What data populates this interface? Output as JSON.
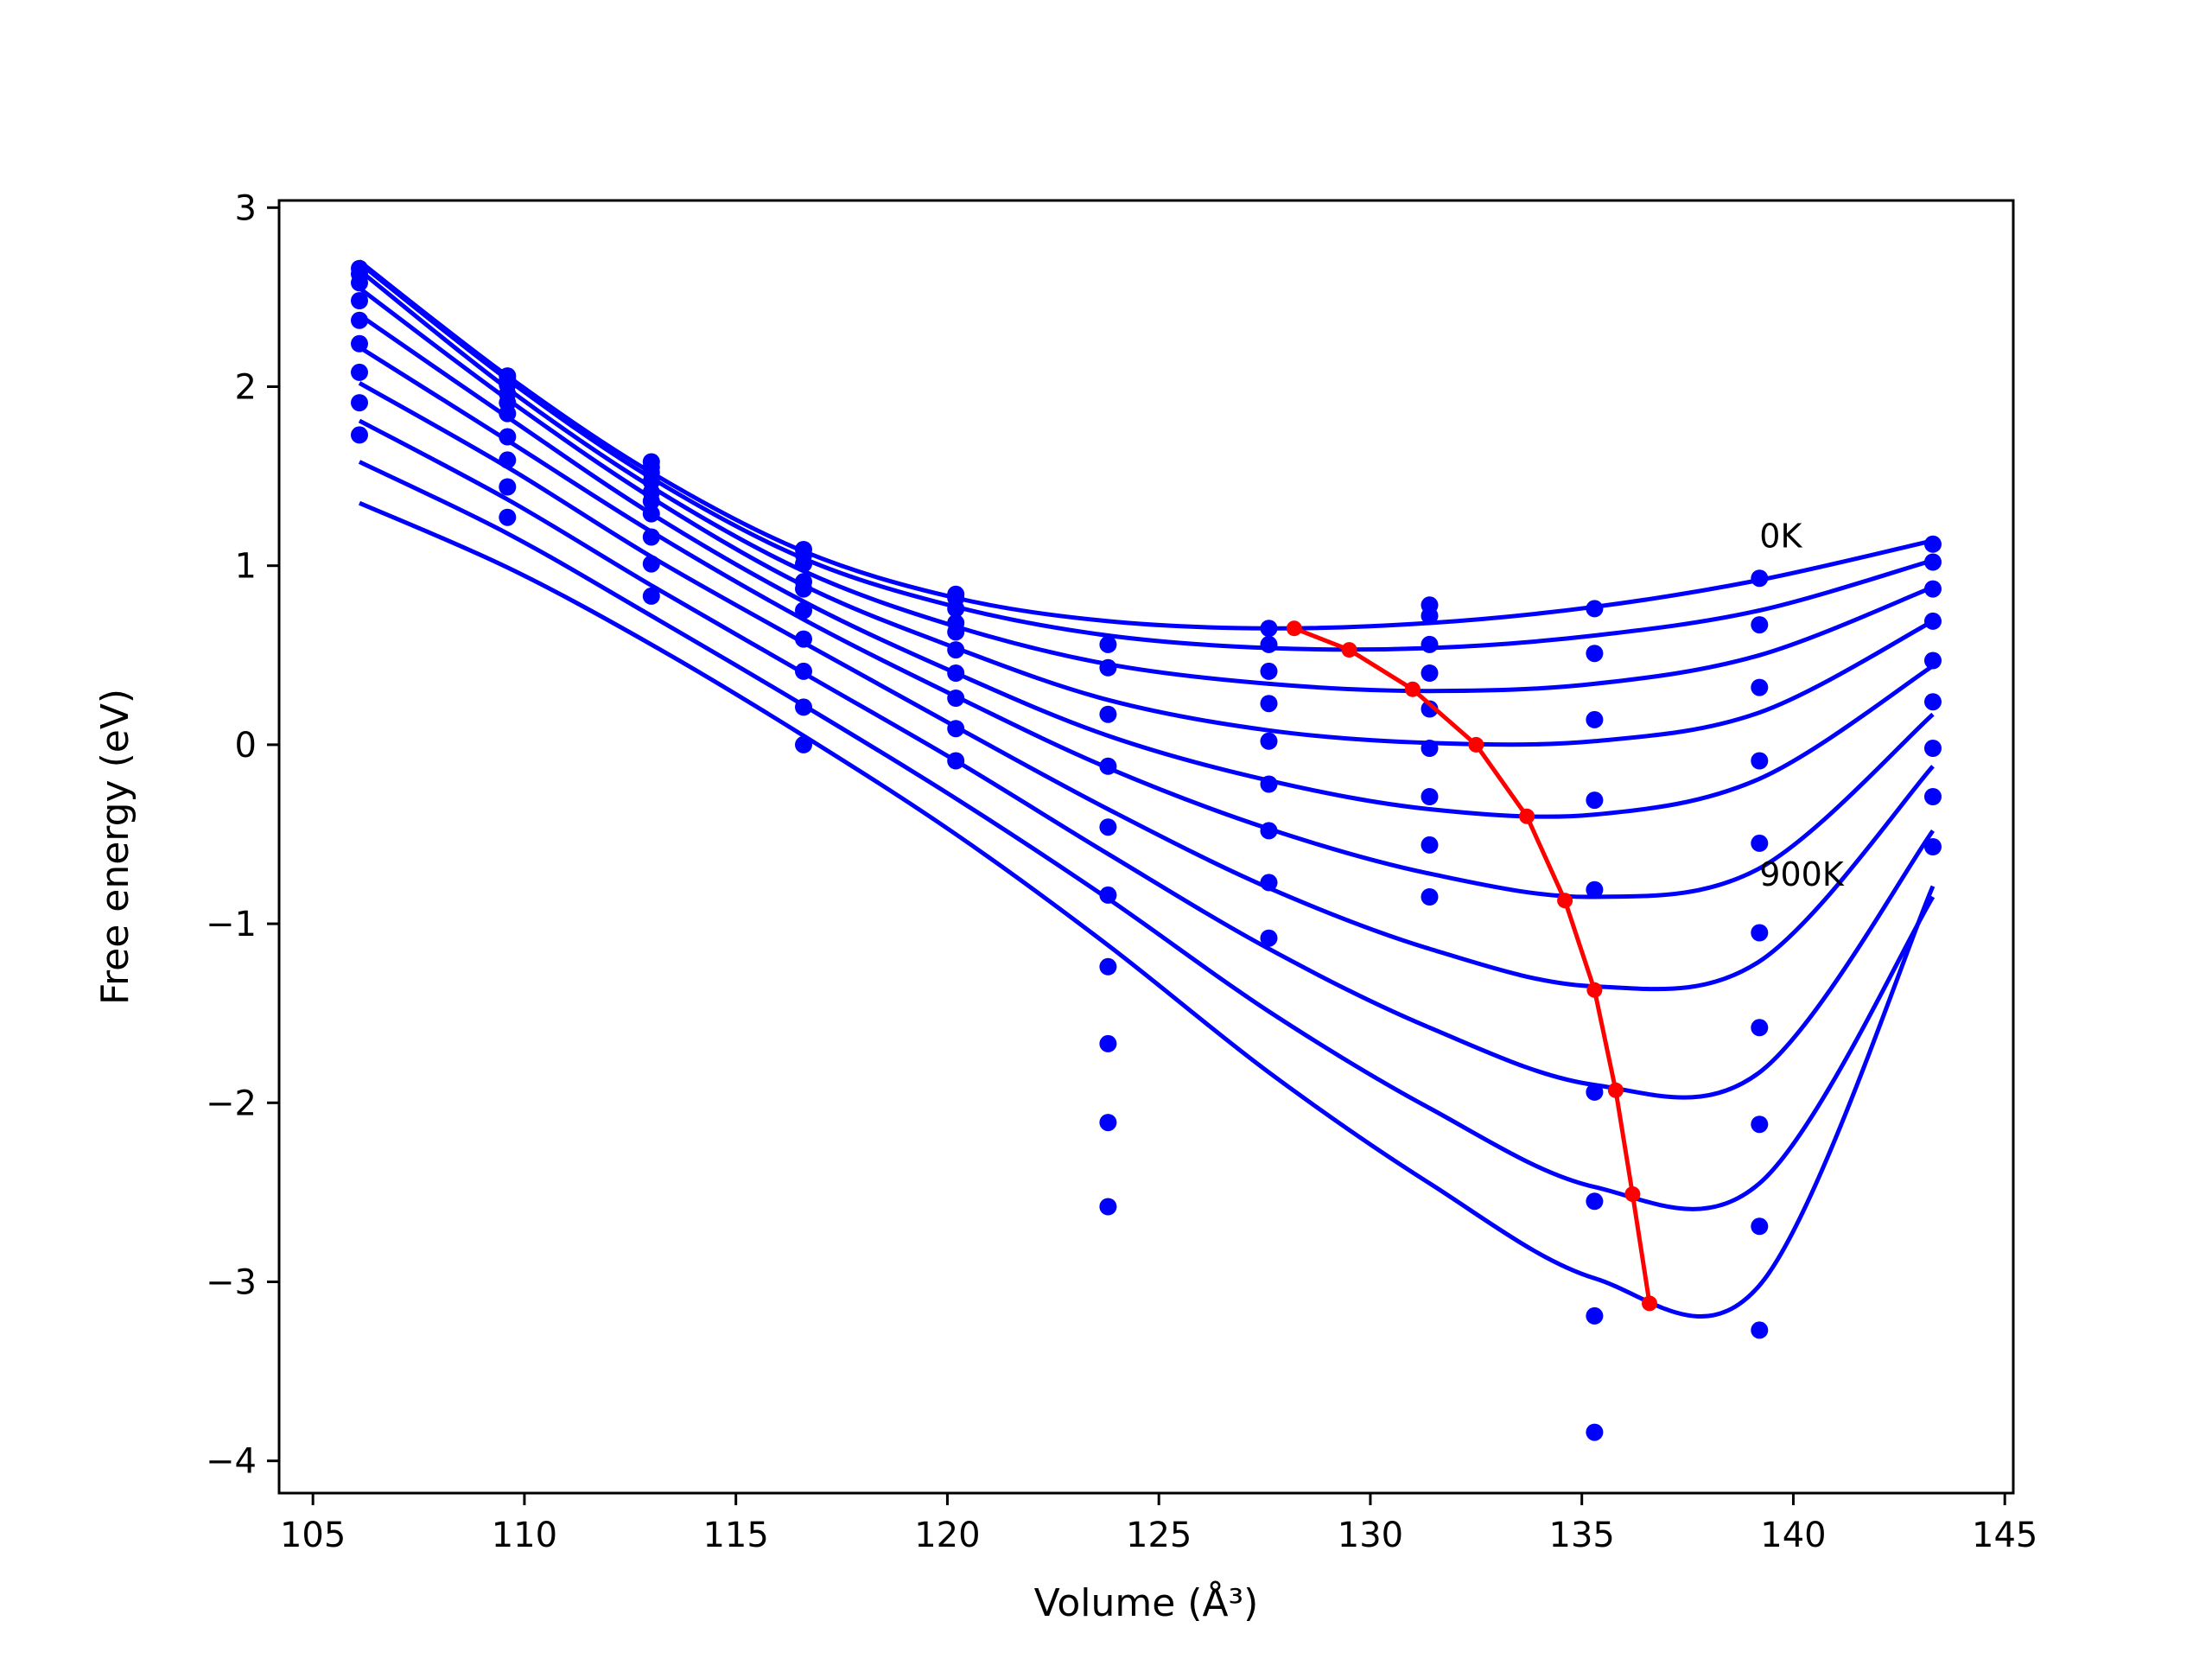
{
  "chart_data": {
    "type": "scatter",
    "title": "",
    "xlabel": "Volume (Å³)",
    "ylabel": "Free energy (eV)",
    "xlim": [
      104.2,
      145.2
    ],
    "ylim": [
      -4.18,
      3.04
    ],
    "xticks": [
      105,
      110,
      115,
      120,
      125,
      130,
      135,
      140,
      145
    ],
    "yticks": [
      -4,
      -3,
      -2,
      -1,
      0,
      1,
      2,
      3
    ],
    "xtick_labels": [
      "105",
      "110",
      "115",
      "120",
      "125",
      "130",
      "135",
      "140",
      "145"
    ],
    "ytick_labels": [
      "−4",
      "−3",
      "−2",
      "−1",
      "0",
      "1",
      "2",
      "3"
    ],
    "grid": false,
    "colors": {
      "points": "#0000ff",
      "curves": "#0000ff",
      "minima": "#ff0000",
      "axes": "#000000"
    },
    "volumes": [
      106.1,
      109.6,
      113.0,
      116.6,
      120.2,
      123.8,
      127.6,
      131.4,
      135.3,
      139.2,
      143.3
    ],
    "series": [
      {
        "values": [
          2.66,
          2.06,
          1.58,
          1.09,
          0.84,
          0.56,
          0.65,
          0.78,
          0.76,
          0.93,
          1.12
        ],
        "curve": [
          [
            106.1,
            2.7
          ],
          [
            109.6,
            2.06
          ],
          [
            113.0,
            1.52
          ],
          [
            116.6,
            1.08
          ],
          [
            120.2,
            0.82
          ],
          [
            123.8,
            0.69
          ],
          [
            127.6,
            0.65
          ],
          [
            131.4,
            0.68
          ],
          [
            135.3,
            0.77
          ],
          [
            139.2,
            0.92
          ],
          [
            143.3,
            1.14
          ]
        ]
      },
      {
        "values": [
          2.63,
          2.04,
          1.55,
          1.06,
          0.82,
          0.43,
          0.56,
          0.72,
          0.51,
          0.67,
          1.02
        ],
        "curve": [
          [
            106.1,
            2.69
          ],
          [
            109.6,
            2.04
          ],
          [
            113.0,
            1.49
          ],
          [
            116.6,
            1.04
          ],
          [
            120.2,
            0.77
          ],
          [
            123.8,
            0.61
          ],
          [
            127.6,
            0.54
          ],
          [
            131.4,
            0.54
          ],
          [
            135.3,
            0.61
          ],
          [
            139.2,
            0.75
          ],
          [
            143.3,
            1.03
          ]
        ]
      },
      {
        "values": [
          2.58,
          2.01,
          1.52,
          1.01,
          0.76,
          0.17,
          0.41,
          0.56,
          0.14,
          0.32,
          0.87
        ],
        "curve": [
          [
            106.1,
            2.65
          ],
          [
            109.6,
            1.99
          ],
          [
            113.0,
            1.44
          ],
          [
            116.6,
            0.97
          ],
          [
            120.2,
            0.66
          ],
          [
            123.8,
            0.45
          ],
          [
            127.6,
            0.34
          ],
          [
            131.4,
            0.3
          ],
          [
            135.3,
            0.34
          ],
          [
            139.2,
            0.5
          ],
          [
            143.3,
            0.88
          ]
        ]
      },
      {
        "values": [
          2.48,
          1.96,
          1.47,
          0.91,
          0.68,
          -0.12,
          0.23,
          0.4,
          -0.31,
          -0.09,
          0.69
        ],
        "curve": [
          [
            106.1,
            2.55
          ],
          [
            109.6,
            1.93
          ],
          [
            113.0,
            1.38
          ],
          [
            116.6,
            0.89
          ],
          [
            120.2,
            0.54
          ],
          [
            123.8,
            0.25
          ],
          [
            127.6,
            0.08
          ],
          [
            131.4,
            0.01
          ],
          [
            135.3,
            0.02
          ],
          [
            139.2,
            0.18
          ],
          [
            143.3,
            0.69
          ]
        ]
      },
      {
        "values": [
          2.37,
          1.91,
          1.41,
          0.87,
          0.63,
          -0.46,
          0.02,
          0.2,
          -0.81,
          -0.55,
          0.47
        ],
        "curve": [
          [
            106.1,
            2.4
          ],
          [
            109.6,
            1.83
          ],
          [
            113.0,
            1.29
          ],
          [
            116.6,
            0.8
          ],
          [
            120.2,
            0.4
          ],
          [
            123.8,
            0.05
          ],
          [
            127.6,
            -0.2
          ],
          [
            131.4,
            -0.36
          ],
          [
            135.3,
            -0.39
          ],
          [
            139.2,
            -0.19
          ],
          [
            143.3,
            0.44
          ]
        ]
      },
      {
        "values": [
          2.24,
          1.85,
          1.36,
          0.75,
          0.53,
          -0.84,
          -0.22,
          -0.02,
          -1.94,
          -1.05,
          0.24
        ],
        "curve": [
          [
            106.1,
            2.22
          ],
          [
            109.6,
            1.7
          ],
          [
            113.0,
            1.19
          ],
          [
            116.6,
            0.7
          ],
          [
            120.2,
            0.27
          ],
          [
            123.8,
            -0.13
          ],
          [
            127.6,
            -0.47
          ],
          [
            131.4,
            -0.72
          ],
          [
            135.3,
            -0.85
          ],
          [
            139.2,
            -0.69
          ],
          [
            143.3,
            0.17
          ]
        ]
      },
      {
        "values": [
          2.08,
          1.72,
          1.29,
          0.59,
          0.4,
          -1.24,
          -0.48,
          -0.29,
          -2.55,
          -1.58,
          -0.02
        ],
        "curve": [
          [
            106.1,
            2.02
          ],
          [
            109.6,
            1.55
          ],
          [
            113.0,
            1.05
          ],
          [
            116.6,
            0.57
          ],
          [
            120.2,
            0.1
          ],
          [
            123.8,
            -0.36
          ],
          [
            127.6,
            -0.8
          ],
          [
            131.4,
            -1.14
          ],
          [
            135.3,
            -1.35
          ],
          [
            139.2,
            -1.21
          ],
          [
            143.3,
            -0.12
          ]
        ]
      },
      {
        "values": [
          1.91,
          1.59,
          1.16,
          0.41,
          0.26,
          -1.67,
          -0.77,
          -0.56,
          -3.19,
          -2.12,
          -0.29
        ],
        "curve": [
          [
            106.1,
            1.81
          ],
          [
            109.6,
            1.37
          ],
          [
            113.0,
            0.89
          ],
          [
            116.6,
            0.4
          ],
          [
            120.2,
            -0.09
          ],
          [
            123.8,
            -0.61
          ],
          [
            127.6,
            -1.14
          ],
          [
            131.4,
            -1.58
          ],
          [
            135.3,
            -1.9
          ],
          [
            139.2,
            -1.83
          ],
          [
            143.3,
            -0.48
          ]
        ]
      },
      {
        "values": [
          1.73,
          1.44,
          1.01,
          0.21,
          0.09,
          -2.11,
          -1.08,
          -0.85,
          -3.84,
          -2.69,
          -0.57
        ],
        "curve": [
          [
            106.1,
            1.58
          ],
          [
            109.6,
            1.18
          ],
          [
            113.0,
            0.72
          ],
          [
            116.6,
            0.22
          ],
          [
            120.2,
            -0.3
          ],
          [
            123.8,
            -0.86
          ],
          [
            127.6,
            -1.49
          ],
          [
            131.4,
            -2.03
          ],
          [
            135.3,
            -2.47
          ],
          [
            139.2,
            -2.45
          ],
          [
            143.3,
            -0.85
          ]
        ]
      },
      {
        "values": [
          null,
          1.27,
          0.83,
          0.0,
          -0.09,
          -2.58,
          null,
          null,
          null,
          -3.27,
          null
        ],
        "curve": [
          [
            106.1,
            1.35
          ],
          [
            109.6,
            0.99
          ],
          [
            113.0,
            0.56
          ],
          [
            116.6,
            0.05
          ],
          [
            120.2,
            -0.5
          ],
          [
            123.8,
            -1.12
          ],
          [
            127.6,
            -1.83
          ],
          [
            131.4,
            -2.45
          ],
          [
            135.3,
            -2.98
          ],
          [
            139.2,
            -3.02
          ],
          [
            143.3,
            -0.79
          ]
        ]
      }
    ],
    "minima_line": {
      "x": [
        128.2,
        129.5,
        131.0,
        132.5,
        133.7,
        134.6,
        135.3,
        135.8,
        136.2,
        136.6
      ],
      "y": [
        0.65,
        0.53,
        0.31,
        0.0,
        -0.4,
        -0.87,
        -1.37,
        -1.93,
        -2.51,
        -3.12
      ]
    },
    "annotations": [
      {
        "text": "0K",
        "x": 139.2,
        "y": 1.17
      },
      {
        "text": "900K",
        "x": 139.2,
        "y": -0.72
      }
    ]
  }
}
